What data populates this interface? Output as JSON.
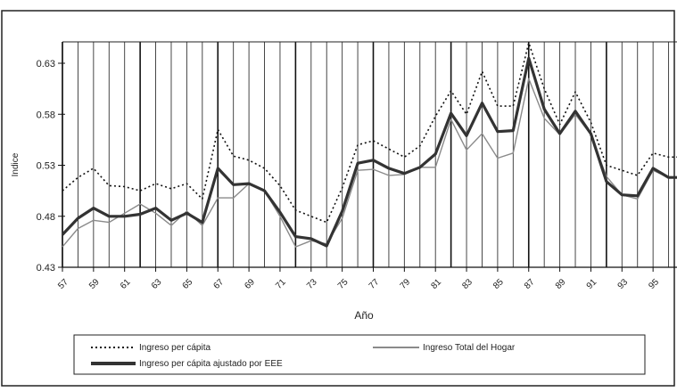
{
  "chart_data": {
    "type": "line",
    "xlabel": "Año",
    "ylabel": "Indice",
    "ylim": [
      0.43,
      0.63
    ],
    "yticks": [
      "0.43",
      "0.48",
      "0.53",
      "0.58",
      "0.63"
    ],
    "ytick_values": [
      0.43,
      0.48,
      0.53,
      0.58,
      0.63
    ],
    "x": [
      57,
      58,
      59,
      60,
      61,
      62,
      63,
      64,
      65,
      66,
      67,
      68,
      69,
      70,
      71,
      72,
      73,
      74,
      75,
      76,
      77,
      78,
      79,
      80,
      81,
      82,
      83,
      84,
      85,
      86,
      87,
      88,
      89,
      90,
      91,
      92,
      93,
      94,
      95,
      96,
      97
    ],
    "xtick_labels": [
      "57",
      "59",
      "61",
      "63",
      "65",
      "67",
      "69",
      "71",
      "73",
      "75",
      "77",
      "79",
      "81",
      "83",
      "85",
      "87",
      "89",
      "91",
      "93",
      "95"
    ],
    "grid": "vertical lines",
    "legend_position": "bottom",
    "series": [
      {
        "name": "Ingreso per cápita",
        "style": "dotted",
        "color": "#111111",
        "values": [
          0.505,
          0.518,
          0.527,
          0.51,
          0.509,
          0.505,
          0.512,
          0.507,
          0.512,
          0.497,
          0.565,
          0.539,
          0.535,
          0.527,
          0.51,
          0.486,
          0.48,
          0.474,
          0.508,
          0.55,
          0.554,
          0.546,
          0.538,
          0.549,
          0.578,
          0.603,
          0.58,
          0.622,
          0.588,
          0.588,
          0.65,
          0.605,
          0.57,
          0.602,
          0.572,
          0.53,
          0.525,
          0.52,
          0.542,
          0.538,
          0.538
        ]
      },
      {
        "name": "Ingreso Total del Hogar",
        "style": "thin",
        "color": "#8a8a8a",
        "values": [
          0.45,
          0.468,
          0.476,
          0.474,
          0.483,
          0.492,
          0.483,
          0.471,
          0.485,
          0.471,
          0.498,
          0.498,
          0.512,
          0.505,
          0.48,
          0.45,
          0.456,
          0.453,
          0.478,
          0.525,
          0.526,
          0.52,
          0.521,
          0.528,
          0.528,
          0.575,
          0.545,
          0.561,
          0.537,
          0.542,
          0.615,
          0.576,
          0.56,
          0.58,
          0.56,
          0.519,
          0.501,
          0.497,
          0.525,
          0.518,
          0.518
        ]
      },
      {
        "name": "Ingreso per cápita ajustado por EEE",
        "style": "thick",
        "color": "#333333",
        "values": [
          0.462,
          0.478,
          0.488,
          0.48,
          0.48,
          0.482,
          0.488,
          0.476,
          0.483,
          0.474,
          0.527,
          0.511,
          0.512,
          0.505,
          0.484,
          0.46,
          0.458,
          0.451,
          0.485,
          0.532,
          0.535,
          0.527,
          0.522,
          0.528,
          0.541,
          0.581,
          0.559,
          0.591,
          0.563,
          0.564,
          0.635,
          0.585,
          0.561,
          0.583,
          0.561,
          0.514,
          0.501,
          0.5,
          0.527,
          0.518,
          0.518
        ]
      }
    ]
  }
}
